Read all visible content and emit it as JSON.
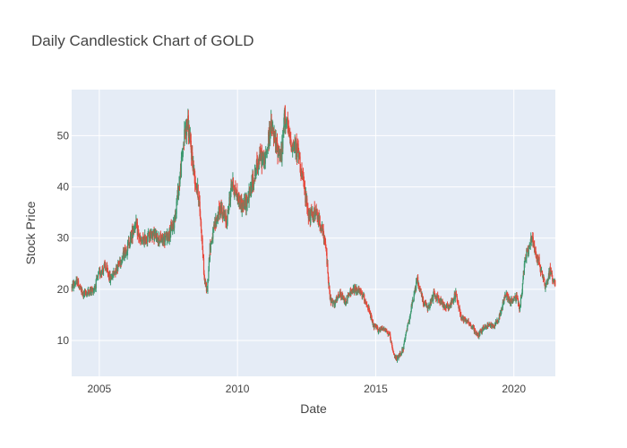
{
  "chart_data": {
    "type": "candlestick",
    "title": "Daily Candlestick Chart of GOLD",
    "xlabel": "Date",
    "ylabel": "Stock Price",
    "xlim": [
      2004.0,
      2021.5
    ],
    "ylim": [
      3,
      59
    ],
    "x_ticks": [
      {
        "value": 2005,
        "label": "2005"
      },
      {
        "value": 2010,
        "label": "2010"
      },
      {
        "value": 2015,
        "label": "2015"
      },
      {
        "value": 2020,
        "label": "2020"
      }
    ],
    "y_ticks": [
      {
        "value": 10,
        "label": "10"
      },
      {
        "value": 20,
        "label": "20"
      },
      {
        "value": 30,
        "label": "30"
      },
      {
        "value": 40,
        "label": "40"
      },
      {
        "value": 50,
        "label": "50"
      }
    ],
    "grid": true,
    "colors": {
      "increasing": "#3d9970",
      "decreasing": "#e8473a",
      "plot_bg": "#e5ecf6",
      "grid": "#ffffff"
    },
    "price_path": [
      [
        2004.0,
        20.5
      ],
      [
        2004.2,
        21.5
      ],
      [
        2004.4,
        19.0
      ],
      [
        2004.6,
        19.5
      ],
      [
        2004.8,
        20.0
      ],
      [
        2005.0,
        23.0
      ],
      [
        2005.2,
        24.5
      ],
      [
        2005.4,
        22.0
      ],
      [
        2005.6,
        24.0
      ],
      [
        2005.8,
        26.0
      ],
      [
        2006.0,
        28.0
      ],
      [
        2006.2,
        31.0
      ],
      [
        2006.3,
        33.0
      ],
      [
        2006.5,
        29.0
      ],
      [
        2006.7,
        30.0
      ],
      [
        2006.9,
        31.0
      ],
      [
        2007.1,
        30.0
      ],
      [
        2007.3,
        29.5
      ],
      [
        2007.5,
        30.5
      ],
      [
        2007.7,
        33.0
      ],
      [
        2007.9,
        41.0
      ],
      [
        2008.0,
        46.0
      ],
      [
        2008.1,
        51.0
      ],
      [
        2008.2,
        52.5
      ],
      [
        2008.3,
        48.0
      ],
      [
        2008.45,
        42.0
      ],
      [
        2008.6,
        38.0
      ],
      [
        2008.7,
        31.0
      ],
      [
        2008.8,
        22.0
      ],
      [
        2008.9,
        19.5
      ],
      [
        2009.0,
        28.0
      ],
      [
        2009.2,
        33.0
      ],
      [
        2009.4,
        36.0
      ],
      [
        2009.6,
        33.0
      ],
      [
        2009.8,
        41.0
      ],
      [
        2010.0,
        38.0
      ],
      [
        2010.2,
        36.0
      ],
      [
        2010.4,
        38.0
      ],
      [
        2010.6,
        42.0
      ],
      [
        2010.8,
        46.0
      ],
      [
        2011.0,
        45.0
      ],
      [
        2011.2,
        52.0
      ],
      [
        2011.4,
        48.0
      ],
      [
        2011.6,
        46.0
      ],
      [
        2011.7,
        54.0
      ],
      [
        2011.8,
        52.0
      ],
      [
        2011.9,
        49.0
      ],
      [
        2012.0,
        48.0
      ],
      [
        2012.2,
        47.0
      ],
      [
        2012.4,
        40.0
      ],
      [
        2012.6,
        34.0
      ],
      [
        2012.8,
        35.0
      ],
      [
        2013.0,
        33.0
      ],
      [
        2013.2,
        28.0
      ],
      [
        2013.35,
        18.0
      ],
      [
        2013.5,
        17.0
      ],
      [
        2013.7,
        19.0
      ],
      [
        2013.9,
        17.5
      ],
      [
        2014.1,
        19.5
      ],
      [
        2014.3,
        20.0
      ],
      [
        2014.5,
        19.0
      ],
      [
        2014.7,
        17.0
      ],
      [
        2014.9,
        13.0
      ],
      [
        2015.1,
        12.0
      ],
      [
        2015.3,
        12.5
      ],
      [
        2015.5,
        11.0
      ],
      [
        2015.65,
        7.0
      ],
      [
        2015.8,
        6.5
      ],
      [
        2016.0,
        8.5
      ],
      [
        2016.2,
        14.0
      ],
      [
        2016.4,
        19.0
      ],
      [
        2016.5,
        22.0
      ],
      [
        2016.7,
        18.0
      ],
      [
        2016.9,
        16.0
      ],
      [
        2017.1,
        19.0
      ],
      [
        2017.3,
        18.0
      ],
      [
        2017.5,
        16.5
      ],
      [
        2017.7,
        17.0
      ],
      [
        2017.9,
        19.0
      ],
      [
        2018.1,
        14.5
      ],
      [
        2018.3,
        14.0
      ],
      [
        2018.5,
        12.5
      ],
      [
        2018.7,
        11.0
      ],
      [
        2018.9,
        12.5
      ],
      [
        2019.1,
        13.0
      ],
      [
        2019.3,
        13.0
      ],
      [
        2019.5,
        15.0
      ],
      [
        2019.7,
        19.0
      ],
      [
        2019.9,
        17.5
      ],
      [
        2020.1,
        18.5
      ],
      [
        2020.2,
        16.0
      ],
      [
        2020.3,
        20.0
      ],
      [
        2020.4,
        26.0
      ],
      [
        2020.55,
        28.0
      ],
      [
        2020.65,
        30.0
      ],
      [
        2020.8,
        27.0
      ],
      [
        2021.0,
        23.5
      ],
      [
        2021.15,
        20.5
      ],
      [
        2021.3,
        23.5
      ],
      [
        2021.5,
        21.0
      ]
    ]
  }
}
